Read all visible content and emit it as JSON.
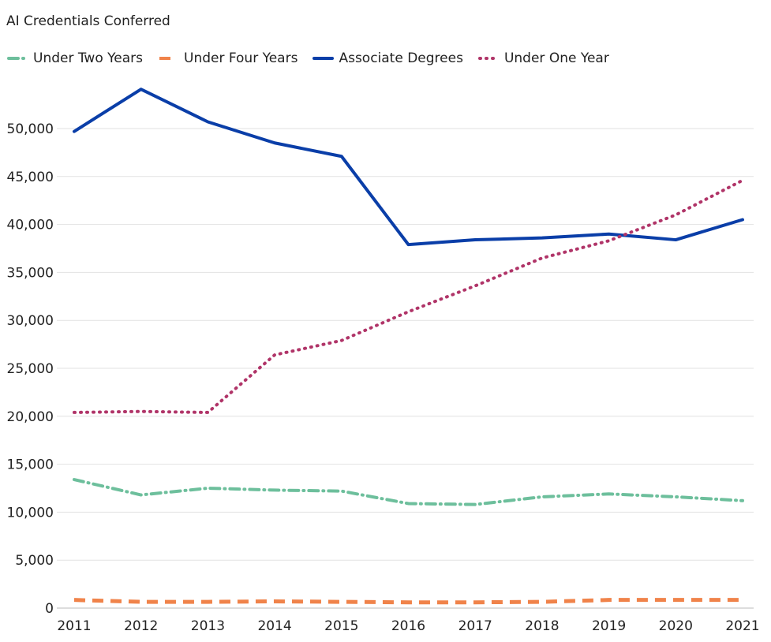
{
  "chart_data": {
    "type": "line",
    "title": "AI Credentials Conferred",
    "xlabel": "",
    "ylabel": "",
    "x": [
      "2011",
      "2012",
      "2013",
      "2014",
      "2015",
      "2016",
      "2017",
      "2018",
      "2019",
      "2020",
      "2021"
    ],
    "ylim": [
      0,
      55000
    ],
    "yticks": [
      0,
      5000,
      10000,
      15000,
      20000,
      25000,
      30000,
      35000,
      40000,
      45000,
      50000
    ],
    "ytick_labels": [
      "0",
      "5,000",
      "10,000",
      "15,000",
      "20,000",
      "25,000",
      "30,000",
      "35,000",
      "40,000",
      "45,000",
      "50,000"
    ],
    "grid": true,
    "legend_position": "top-left",
    "series": [
      {
        "name": "Under Two Years",
        "color": "#6dbf9c",
        "style": "dashdot",
        "values": [
          13400,
          11800,
          12500,
          12300,
          12200,
          10900,
          10800,
          11600,
          11900,
          11600,
          11200
        ]
      },
      {
        "name": "Under Four Years",
        "color": "#f0834a",
        "style": "dashed",
        "values": [
          850,
          650,
          650,
          700,
          650,
          600,
          600,
          650,
          850,
          850,
          850
        ]
      },
      {
        "name": "Associate Degrees",
        "color": "#0a3ea8",
        "style": "solid",
        "values": [
          49700,
          54100,
          50700,
          48500,
          47100,
          37900,
          38400,
          38600,
          39000,
          38400,
          40500
        ]
      },
      {
        "name": "Under One Year",
        "color": "#b03468",
        "style": "dotted",
        "values": [
          20400,
          20500,
          20400,
          26400,
          27900,
          30900,
          33600,
          36500,
          38300,
          41000,
          44600
        ]
      }
    ]
  }
}
